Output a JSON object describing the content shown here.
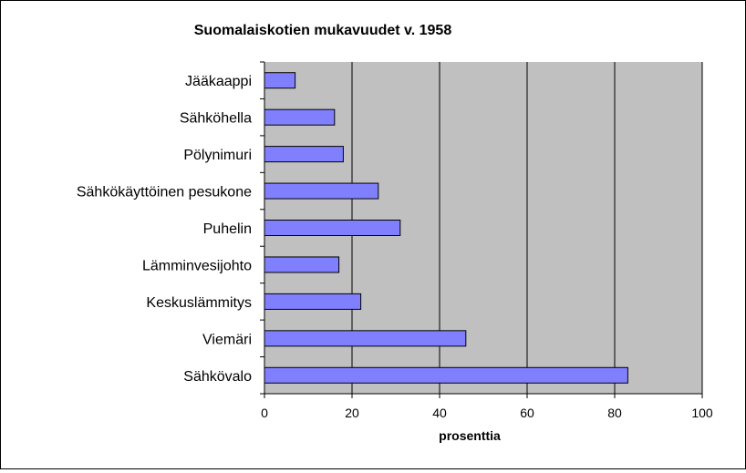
{
  "chart_data": {
    "type": "bar",
    "orientation": "horizontal",
    "title": "Suomalaiskotien mukavuudet v. 1958",
    "xlabel": "prosenttia",
    "ylabel": "",
    "xlim": [
      0,
      100
    ],
    "x_ticks": [
      0,
      20,
      40,
      60,
      80,
      100
    ],
    "grid": "vertical major gridlines",
    "legend": "none",
    "colors": {
      "bar_fill": "#8080ff",
      "bar_stroke": "#000000",
      "plot_background": "#c0c0c0",
      "gridline": "#000000"
    },
    "categories": [
      "Jääkaappi",
      "Sähköhella",
      "Pölynimuri",
      "Sähkökäyttöinen pesukone",
      "Puhelin",
      "Lämminvesijohto",
      "Keskuslämmitys",
      "Viemäri",
      "Sähkövalo"
    ],
    "values": [
      7,
      16,
      18,
      26,
      31,
      17,
      22,
      46,
      83
    ]
  }
}
